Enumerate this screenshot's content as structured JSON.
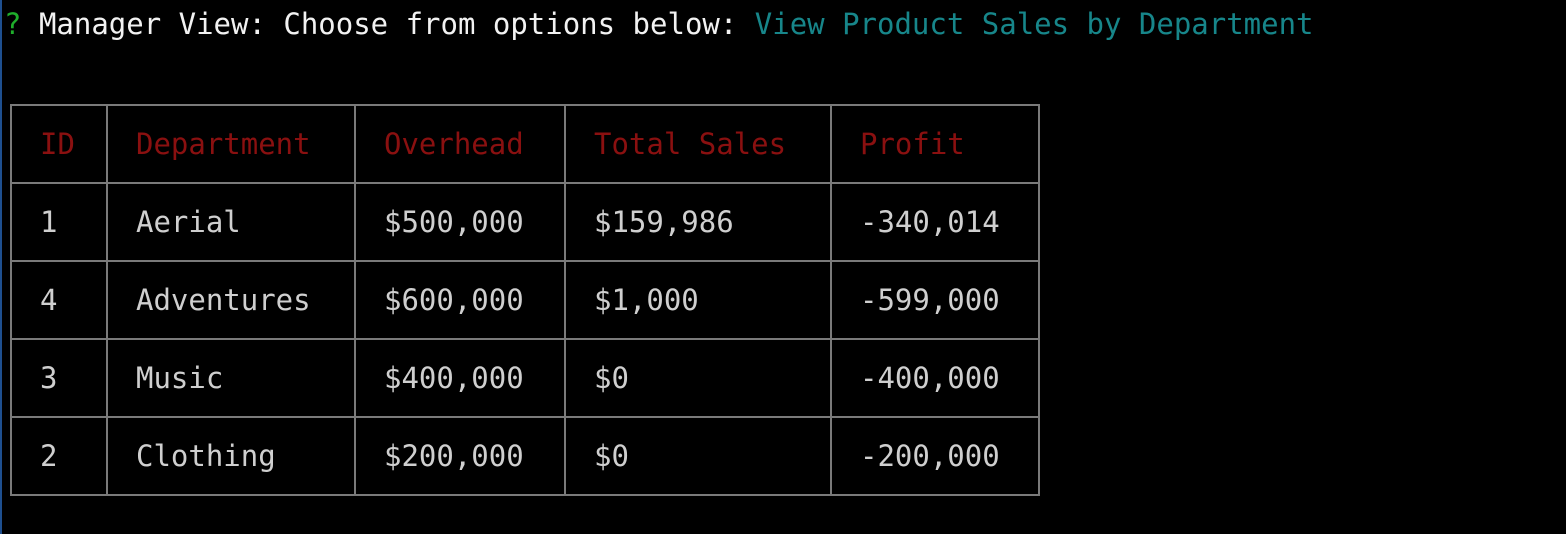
{
  "prompt": {
    "mark": "?",
    "text": "Manager View: Choose from options below:",
    "answer": "View Product Sales by Department"
  },
  "table": {
    "headers": {
      "id": "ID",
      "department": "Department",
      "overhead": "Overhead",
      "total_sales": "Total Sales",
      "profit": "Profit"
    },
    "rows": [
      {
        "id": "1",
        "department": "Aerial",
        "overhead": "$500,000",
        "total_sales": "$159,986",
        "profit": "-340,014"
      },
      {
        "id": "4",
        "department": "Adventures",
        "overhead": "$600,000",
        "total_sales": "$1,000",
        "profit": "-599,000"
      },
      {
        "id": "3",
        "department": "Music",
        "overhead": "$400,000",
        "total_sales": "$0",
        "profit": "-400,000"
      },
      {
        "id": "2",
        "department": "Clothing",
        "overhead": "$200,000",
        "total_sales": "$0",
        "profit": "-200,000"
      }
    ]
  },
  "colors": {
    "background": "#000000",
    "prompt_mark": "#1fae2b",
    "prompt_text": "#f2f2f2",
    "prompt_answer": "#17868a",
    "header_text": "#8a1010",
    "cell_text": "#cfcfcf",
    "border": "#7a7a7a"
  }
}
